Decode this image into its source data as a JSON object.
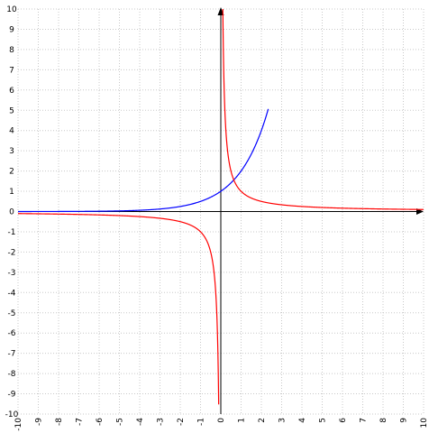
{
  "chart_data": {
    "type": "line",
    "title": "",
    "xlabel": "",
    "ylabel": "",
    "xlim": [
      -10,
      10
    ],
    "ylim": [
      -10,
      10
    ],
    "grid": true,
    "x_ticks": [
      "-10",
      "-9",
      "-8",
      "-7",
      "-6",
      "-5",
      "-4",
      "-3",
      "-2",
      "-1",
      "0",
      "1",
      "2",
      "3",
      "4",
      "5",
      "6",
      "7",
      "8",
      "9",
      "10"
    ],
    "y_ticks": [
      "10",
      "9",
      "8",
      "7",
      "6",
      "5",
      "4",
      "3",
      "2",
      "1",
      "0",
      "-1",
      "-2",
      "-3",
      "-4",
      "-5",
      "-6",
      "-7",
      "-8",
      "-9",
      "-10"
    ],
    "series": [
      {
        "function": "y = 2^x",
        "color": "#0000ff",
        "x": [
          -10,
          -8,
          -6,
          -4,
          -3,
          -2,
          -1,
          0,
          0.5,
          1,
          1.5,
          2,
          2.3
        ],
        "y": [
          0.001,
          0.004,
          0.016,
          0.0625,
          0.125,
          0.25,
          0.5,
          1,
          1.41,
          2,
          2.83,
          4,
          4.92
        ]
      },
      {
        "function": "y = 1/x",
        "color": "#ff0000",
        "x": [
          -10,
          -5,
          -2,
          -1,
          -0.5,
          -0.2,
          -0.1,
          0.1,
          0.2,
          0.5,
          1,
          2,
          5,
          10
        ],
        "y": [
          -0.1,
          -0.2,
          -0.5,
          -1,
          -2,
          -5,
          -10,
          10,
          5,
          2,
          1,
          0.5,
          0.2,
          0.1
        ]
      }
    ]
  }
}
